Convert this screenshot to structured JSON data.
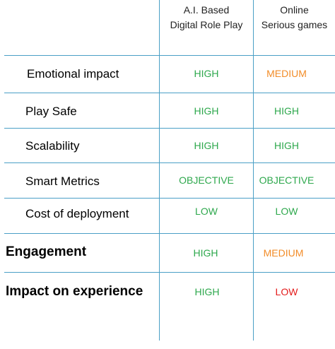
{
  "columns": [
    {
      "line1": "A.I. Based",
      "line2": "Digital Role Play"
    },
    {
      "line1": "Online",
      "line2": "Serious games"
    }
  ],
  "colors": {
    "high": "#2ea84d",
    "medium": "#f28c28",
    "low": "#e31a1a",
    "gridline": "#4a9fc6"
  },
  "rows": [
    {
      "label": "Emotional impact",
      "v1": "HIGH",
      "v2": "MEDIUM"
    },
    {
      "label": "Play Safe",
      "v1": "HIGH",
      "v2": "HIGH"
    },
    {
      "label": "Scalability",
      "v1": "HIGH",
      "v2": "HIGH"
    },
    {
      "label": "Smart Metrics",
      "v1": "OBJECTIVE",
      "v2": "OBJECTIVE"
    },
    {
      "label": "Cost of deployment",
      "v1": "LOW",
      "v2": "LOW"
    },
    {
      "label": "Engagement",
      "v1": "HIGH",
      "v2": "MEDIUM"
    },
    {
      "label": "Impact on experience",
      "v1": "HIGH",
      "v2": "LOW"
    }
  ]
}
